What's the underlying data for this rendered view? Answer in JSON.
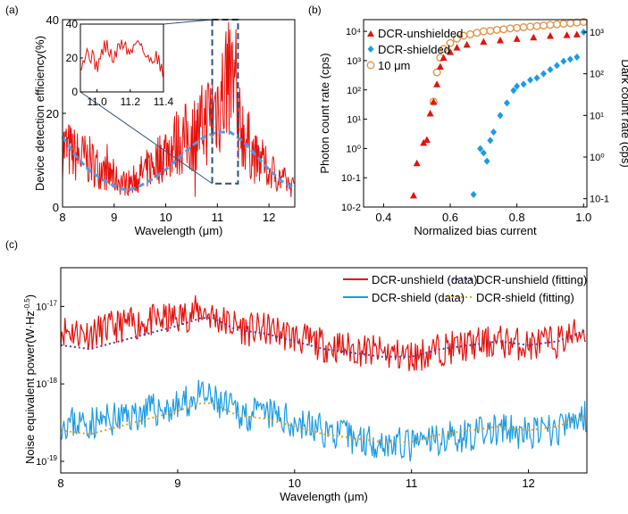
{
  "colors": {
    "red": "#e8100b",
    "blue": "#1a9be6",
    "dash_blue": "#4a9ee8",
    "orange": "#e0954a",
    "navy": "#2f4f80",
    "purple": "#5a3a9a",
    "gold": "#e8a21c"
  },
  "chart_data": [
    {
      "panel": "(a)",
      "type": "line",
      "xlabel": "Wavelength (μm)",
      "ylabel": "Device detection efficiency(%)",
      "xlim": [
        8,
        12.5
      ],
      "ylim": [
        0,
        40
      ],
      "xticks": [
        "8",
        "9",
        "10",
        "11",
        "12"
      ],
      "yticks": [
        "0",
        "20",
        "40"
      ],
      "grid": false,
      "series": [
        {
          "style": "data",
          "x": [
            8.0,
            8.25,
            8.5,
            8.75,
            9.0,
            9.25,
            9.5,
            9.75,
            10.0,
            10.25,
            10.5,
            10.75,
            11.0,
            11.1,
            11.2,
            11.3,
            11.4,
            11.5,
            11.75,
            12.0,
            12.25,
            12.5
          ],
          "y": [
            13,
            11,
            10,
            8,
            6,
            5,
            7,
            9,
            12,
            14,
            15,
            18,
            22,
            24,
            28,
            26,
            22,
            16,
            10,
            8,
            6,
            4
          ]
        },
        {
          "style": "fit",
          "x": [
            8.0,
            8.25,
            8.5,
            8.75,
            9.0,
            9.25,
            9.5,
            9.75,
            10.0,
            10.25,
            10.5,
            10.75,
            11.0,
            11.25,
            11.5,
            11.75,
            12.0,
            12.25,
            12.5
          ],
          "y": [
            15,
            11,
            8,
            6,
            4.5,
            3.5,
            4.5,
            6,
            8,
            10.5,
            13,
            15,
            16,
            16,
            14,
            11,
            8,
            5.5,
            4
          ]
        }
      ],
      "annotation": "dashed box marks 10.9–11.4 μm region shown in inset",
      "inset": {
        "xlim": [
          10.9,
          11.4
        ],
        "ylim": [
          0,
          40
        ],
        "xticks": [
          "11.0",
          "11.2",
          "11.4"
        ],
        "yticks": [
          "0",
          "20",
          "40"
        ],
        "x": [
          10.9,
          10.95,
          11.0,
          11.05,
          11.1,
          11.15,
          11.2,
          11.25,
          11.3,
          11.35,
          11.4
        ],
        "y": [
          17,
          24,
          15,
          28,
          19,
          30,
          22,
          33,
          18,
          22,
          13
        ]
      }
    },
    {
      "panel": "(b)",
      "type": "scatter",
      "xlabel": "Normalized bias current",
      "ylabel": "Photon count rate (cps)",
      "y2label": "Dark count rate (cps)",
      "xlim": [
        0.34,
        1.01
      ],
      "ylim_log10": [
        -2,
        4.4
      ],
      "y2lim_log10": [
        -1.2,
        3.3
      ],
      "xticks": [
        "0.4",
        "0.6",
        "0.8",
        "1.0"
      ],
      "yticks": [
        "10-2",
        "10-1",
        "10⁰",
        "10¹",
        "10²",
        "10³",
        "10⁴"
      ],
      "y2ticks": [
        "10-1",
        "10⁰",
        "10¹",
        "10²",
        "10³"
      ],
      "legend_position": "top-left",
      "series": [
        {
          "name": "DCR-unshielded",
          "marker": "triangle",
          "x": [
            0.49,
            0.5,
            0.52,
            0.53,
            0.54,
            0.55,
            0.56,
            0.57,
            0.58,
            0.6,
            0.62,
            0.65,
            0.7,
            0.75,
            0.8,
            0.85,
            0.9,
            0.95,
            0.98
          ],
          "y_log10": [
            -1.6,
            -0.5,
            0.2,
            0.3,
            1.2,
            1.6,
            2.2,
            2.8,
            3.1,
            3.3,
            3.45,
            3.55,
            3.65,
            3.7,
            3.75,
            3.8,
            3.85,
            3.88,
            3.9
          ]
        },
        {
          "name": "DCR-shielded",
          "marker": "diamond",
          "x": [
            0.67,
            0.69,
            0.7,
            0.71,
            0.72,
            0.73,
            0.75,
            0.77,
            0.79,
            0.8,
            0.82,
            0.84,
            0.86,
            0.88,
            0.9,
            0.92,
            0.94,
            0.96,
            0.98,
            1.0
          ],
          "y2_log10": [
            -0.9,
            0.2,
            0.1,
            -0.1,
            0.4,
            0.6,
            1.0,
            1.3,
            1.6,
            1.7,
            1.75,
            1.85,
            1.9,
            2.0,
            2.1,
            2.2,
            2.3,
            2.35,
            2.4,
            3.0
          ]
        },
        {
          "name": "10 μm",
          "marker": "circle-open",
          "x": [
            0.55,
            0.56,
            0.57,
            0.58,
            0.6,
            0.62,
            0.64,
            0.66,
            0.68,
            0.7,
            0.72,
            0.74,
            0.76,
            0.78,
            0.8,
            0.82,
            0.84,
            0.86,
            0.88,
            0.9,
            0.92,
            0.94,
            0.96,
            0.98,
            1.0
          ],
          "y_log10": [
            1.6,
            2.6,
            3.1,
            3.4,
            3.6,
            3.75,
            3.85,
            3.9,
            3.95,
            4.0,
            4.02,
            4.05,
            4.07,
            4.1,
            4.12,
            4.14,
            4.16,
            4.18,
            4.2,
            4.22,
            4.24,
            4.26,
            4.28,
            4.3,
            4.32
          ]
        }
      ]
    },
    {
      "panel": "(c)",
      "type": "line",
      "xlabel": "Wavelength (μm)",
      "ylabel": "Noise equivalent power(W·Hz",
      "ylabel_sup": "-0.5",
      "ylabel_end": ")",
      "xlim": [
        8,
        12.5
      ],
      "ylim_log10": [
        -19.15,
        -16.5
      ],
      "xticks": [
        "8",
        "9",
        "10",
        "11",
        "12"
      ],
      "yticks": [
        {
          "base": "10",
          "exp": "-17",
          "log10": -17
        },
        {
          "base": "10",
          "exp": "-18",
          "log10": -18
        },
        {
          "base": "10",
          "exp": "-19",
          "log10": -19
        }
      ],
      "legend_position": "top-right",
      "series": [
        {
          "name": "DCR-unshield (data)",
          "style": "solid-red",
          "x": [
            8.0,
            8.25,
            8.5,
            8.75,
            9.0,
            9.2,
            9.4,
            9.6,
            9.8,
            10.0,
            10.25,
            10.5,
            10.75,
            11.0,
            11.25,
            11.5,
            11.75,
            12.0,
            12.25,
            12.5
          ],
          "y_log10": [
            -17.3,
            -17.35,
            -17.25,
            -17.2,
            -17.15,
            -17.05,
            -17.2,
            -17.3,
            -17.3,
            -17.4,
            -17.5,
            -17.55,
            -17.6,
            -17.65,
            -17.55,
            -17.5,
            -17.45,
            -17.5,
            -17.45,
            -17.3
          ]
        },
        {
          "name": "DCR-shield (data)",
          "style": "solid-blue",
          "x": [
            8.0,
            8.25,
            8.5,
            8.75,
            9.0,
            9.2,
            9.4,
            9.6,
            9.8,
            10.0,
            10.25,
            10.5,
            10.75,
            11.0,
            11.25,
            11.5,
            11.75,
            12.0,
            12.25,
            12.5
          ],
          "y_log10": [
            -18.5,
            -18.5,
            -18.45,
            -18.35,
            -18.3,
            -18.15,
            -18.3,
            -18.4,
            -18.4,
            -18.5,
            -18.6,
            -18.7,
            -18.75,
            -18.8,
            -18.7,
            -18.65,
            -18.6,
            -18.65,
            -18.6,
            -18.4
          ]
        },
        {
          "name": "DCR-unshield (fitting)",
          "style": "dotted-purple",
          "x": [
            8.0,
            8.25,
            8.5,
            8.75,
            9.0,
            9.2,
            9.3,
            9.5,
            9.75,
            10.0,
            10.25,
            10.5,
            10.75,
            11.0,
            11.25,
            11.5,
            11.75,
            12.0,
            12.25,
            12.5
          ],
          "y_log10": [
            -17.5,
            -17.55,
            -17.45,
            -17.35,
            -17.25,
            -17.15,
            -17.15,
            -17.3,
            -17.35,
            -17.45,
            -17.55,
            -17.6,
            -17.65,
            -17.65,
            -17.55,
            -17.5,
            -17.45,
            -17.5,
            -17.45,
            -17.3
          ]
        },
        {
          "name": "DCR-shield (fitting)",
          "style": "dotted-gold",
          "x": [
            8.0,
            8.25,
            8.5,
            8.75,
            9.0,
            9.2,
            9.3,
            9.5,
            9.75,
            10.0,
            10.25,
            10.5,
            10.75,
            11.0,
            11.25,
            11.5,
            11.75,
            12.0,
            12.25,
            12.5
          ],
          "y_log10": [
            -18.6,
            -18.65,
            -18.55,
            -18.45,
            -18.35,
            -18.25,
            -18.25,
            -18.4,
            -18.45,
            -18.55,
            -18.65,
            -18.7,
            -18.75,
            -18.75,
            -18.65,
            -18.6,
            -18.55,
            -18.6,
            -18.55,
            -18.4
          ]
        }
      ]
    }
  ]
}
